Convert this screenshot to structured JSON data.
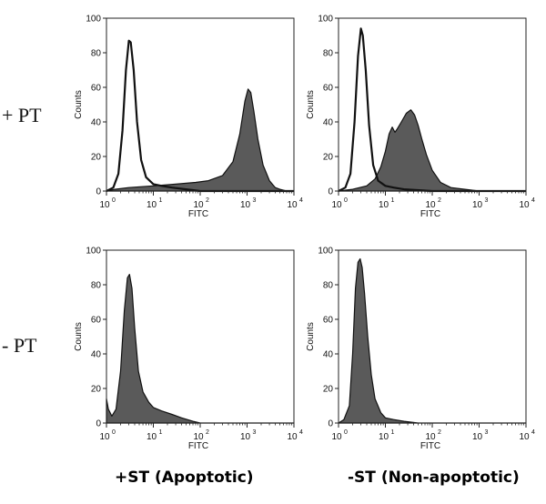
{
  "figure": {
    "row_labels": [
      "+ PT",
      "- PT"
    ],
    "column_labels": [
      "+ST (Apoptotic)",
      "-ST (Non-apoptotic)"
    ]
  },
  "colors": {
    "fill": "#5a5a5a",
    "line": "#111111",
    "axis": "#222222",
    "background": "#ffffff"
  },
  "chart_data": [
    {
      "type": "area",
      "panel": "+ PT / +ST (Apoptotic)",
      "xlabel": "FITC",
      "ylabel": "Counts",
      "x_scale": "log",
      "xlim": [
        1,
        10000
      ],
      "ylim": [
        0,
        100
      ],
      "x_ticks": [
        "10",
        "10",
        "10",
        "10",
        "10"
      ],
      "x_tick_exponents": [
        "0",
        "1",
        "2",
        "3",
        "4"
      ],
      "y_ticks": [
        "0",
        "20",
        "40",
        "60",
        "80",
        "100"
      ],
      "series": [
        {
          "style": "filled",
          "x": [
            1,
            1.5,
            3,
            10,
            30,
            80,
            150,
            300,
            500,
            700,
            900,
            1050,
            1200,
            1400,
            1700,
            2200,
            3000,
            4000,
            5000,
            7000,
            10000
          ],
          "values": [
            0,
            1,
            2,
            3,
            4,
            5,
            6,
            9,
            17,
            33,
            52,
            59,
            57,
            46,
            30,
            15,
            6,
            2,
            1,
            0,
            0
          ]
        },
        {
          "style": "outline",
          "x": [
            1,
            1.4,
            1.8,
            2.2,
            2.6,
            3.0,
            3.3,
            3.8,
            4.5,
            5.5,
            7,
            10,
            15,
            25,
            50,
            100,
            1000,
            10000
          ],
          "values": [
            0,
            2,
            10,
            35,
            70,
            87,
            86,
            70,
            40,
            18,
            8,
            4,
            3,
            2,
            1,
            0,
            0,
            0
          ]
        }
      ]
    },
    {
      "type": "area",
      "panel": "+ PT / -ST (Non-apoptotic)",
      "xlabel": "FITC",
      "ylabel": "Counts",
      "x_scale": "log",
      "xlim": [
        1,
        10000
      ],
      "ylim": [
        0,
        100
      ],
      "x_ticks": [
        "10",
        "10",
        "10",
        "10",
        "10"
      ],
      "x_tick_exponents": [
        "0",
        "1",
        "2",
        "3",
        "4"
      ],
      "y_ticks": [
        "0",
        "20",
        "40",
        "60",
        "80",
        "100"
      ],
      "series": [
        {
          "style": "filled",
          "x": [
            1,
            2,
            4,
            6,
            8,
            10,
            12,
            14,
            16,
            18,
            22,
            28,
            35,
            42,
            50,
            60,
            75,
            100,
            150,
            250,
            500,
            1000,
            10000
          ],
          "values": [
            0,
            1,
            3,
            7,
            14,
            23,
            33,
            37,
            34,
            36,
            40,
            45,
            47,
            44,
            38,
            30,
            21,
            12,
            5,
            2,
            1,
            0,
            0
          ]
        },
        {
          "style": "outline",
          "x": [
            1,
            1.4,
            1.8,
            2.2,
            2.6,
            3.0,
            3.3,
            3.8,
            4.5,
            5.5,
            7,
            10,
            15,
            25,
            100,
            10000
          ],
          "values": [
            0,
            2,
            10,
            40,
            78,
            94,
            90,
            70,
            38,
            15,
            6,
            3,
            2,
            1,
            0,
            0
          ]
        }
      ]
    },
    {
      "type": "area",
      "panel": "- PT / +ST (Apoptotic)",
      "xlabel": "FITC",
      "ylabel": "Counts",
      "x_scale": "log",
      "xlim": [
        1,
        10000
      ],
      "ylim": [
        0,
        100
      ],
      "x_ticks": [
        "10",
        "10",
        "10",
        "10",
        "10"
      ],
      "x_tick_exponents": [
        "0",
        "1",
        "2",
        "3",
        "4"
      ],
      "y_ticks": [
        "0",
        "20",
        "40",
        "60",
        "80",
        "100"
      ],
      "series": [
        {
          "style": "filled",
          "x": [
            1,
            1.1,
            1.3,
            1.6,
            2.0,
            2.4,
            2.8,
            3.1,
            3.5,
            4.0,
            4.8,
            6,
            8,
            10,
            15,
            25,
            40,
            70,
            100,
            10000
          ],
          "values": [
            14,
            8,
            4,
            8,
            30,
            65,
            84,
            86,
            78,
            55,
            30,
            18,
            12,
            9,
            7,
            5,
            3,
            1,
            0,
            0
          ]
        }
      ]
    },
    {
      "type": "area",
      "panel": "- PT / -ST (Non-apoptotic)",
      "xlabel": "FITC",
      "ylabel": "Counts",
      "x_scale": "log",
      "xlim": [
        1,
        10000
      ],
      "ylim": [
        0,
        100
      ],
      "x_ticks": [
        "10",
        "10",
        "10",
        "10",
        "10"
      ],
      "x_tick_exponents": [
        "0",
        "1",
        "2",
        "3",
        "4"
      ],
      "y_ticks": [
        "0",
        "20",
        "40",
        "60",
        "80",
        "100"
      ],
      "series": [
        {
          "style": "filled",
          "x": [
            1,
            1.3,
            1.7,
            2.0,
            2.3,
            2.6,
            2.9,
            3.2,
            3.6,
            4.2,
            5,
            6,
            8,
            10,
            15,
            25,
            50,
            10000
          ],
          "values": [
            0,
            2,
            10,
            40,
            78,
            93,
            95,
            90,
            75,
            50,
            28,
            14,
            6,
            3,
            2,
            1,
            0,
            0
          ]
        }
      ]
    }
  ]
}
